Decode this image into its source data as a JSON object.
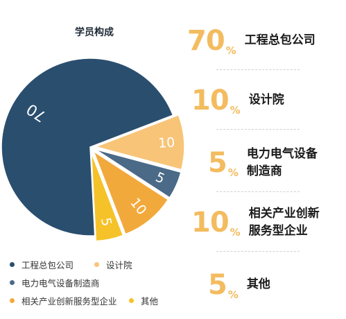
{
  "chart_data": {
    "type": "pie",
    "title": "学员构成",
    "slices": [
      {
        "name": "工程总包公司",
        "value": 70,
        "label": "70",
        "color": "#2a4e6e"
      },
      {
        "name": "设计院",
        "value": 10,
        "label": "10",
        "color": "#f7c478"
      },
      {
        "name": "电力电气设备制造商",
        "value": 5,
        "label": "5",
        "color": "#4a6a87"
      },
      {
        "name": "相关产业创新服务型企业",
        "value": 10,
        "label": "10",
        "color": "#f2a93b"
      },
      {
        "name": "其他",
        "value": 5,
        "label": "5",
        "color": "#f5c22a"
      }
    ],
    "legend": {
      "placement": "bottom-left",
      "items": [
        "工程总包公司",
        "设计院",
        "电力电气设备制造商",
        "相关产业创新服务型企业",
        "其他"
      ]
    }
  },
  "stats": [
    {
      "number": "70",
      "unit": "%",
      "label": "工程总包公司",
      "lines": [
        "工程总包公司"
      ]
    },
    {
      "number": "10",
      "unit": "%",
      "label": "设计院",
      "lines": [
        "设计院"
      ]
    },
    {
      "number": "5",
      "unit": "%",
      "label": "电力电气设备制造商",
      "lines": [
        "电力电气设备",
        "制造商"
      ]
    },
    {
      "number": "10",
      "unit": "%",
      "label": "相关产业创新服务型企业",
      "lines": [
        "相关产业创新",
        "服务型企业"
      ]
    },
    {
      "number": "5",
      "unit": "%",
      "label": "其他",
      "lines": [
        "其他"
      ]
    }
  ],
  "colors": {
    "accent": "#f3bc5f",
    "text": "#1a1a1a"
  }
}
